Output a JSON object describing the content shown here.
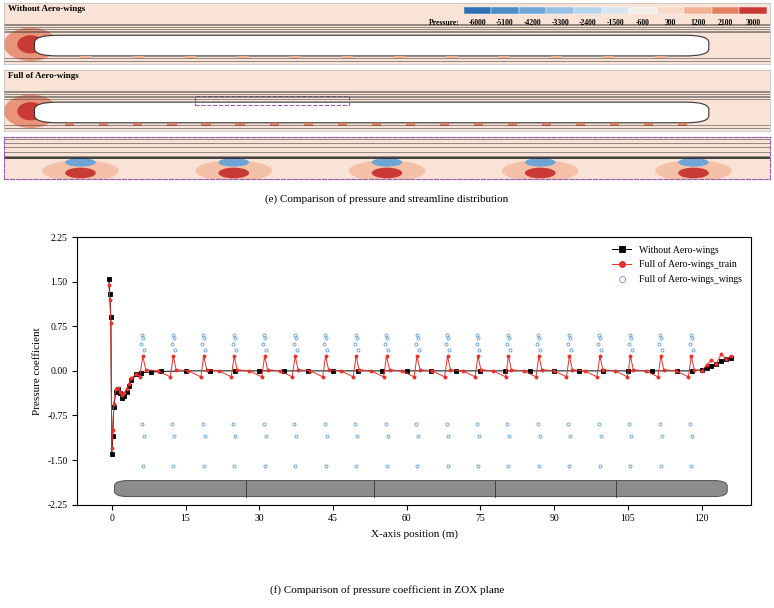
{
  "panel_e": {
    "labels": [
      "Without Aero-wings",
      "Full of Aero-wings"
    ],
    "caption": "(e) Comparison of pressure and streamline distribution",
    "colorbar": {
      "title": "Pressure:",
      "ticks": [
        -6000,
        -5100,
        -4200,
        -3300,
        -2400,
        -1500,
        -600,
        300,
        1200,
        2100,
        3000
      ],
      "colors": [
        "#2e6fb5",
        "#4a8cc8",
        "#6da6d6",
        "#93c0e3",
        "#b6d5ec",
        "#d6e6f1",
        "#f2eeea",
        "#f8d9c7",
        "#f2b293",
        "#e57f62",
        "#c93a35"
      ]
    }
  },
  "chart_data": {
    "type": "scatter",
    "title": "(f) Comparison of pressure coefficient in ZOX plane",
    "x_label": "X-axis position (m)",
    "y_label": "Pressure coefficient",
    "xlim": [
      -7,
      130
    ],
    "ylim": [
      -2.25,
      2.25
    ],
    "xticks": [
      0,
      15,
      30,
      45,
      60,
      75,
      90,
      105,
      120
    ],
    "yticks": [
      -2.25,
      {
        "value": -1.5,
        "label": "-1.50"
      },
      -0.75,
      {
        "value": 0,
        "label": "0.00"
      },
      0.75,
      {
        "value": 1.5,
        "label": "1.50"
      },
      2.25
    ],
    "legend": "upper right",
    "series": [
      {
        "name": "Without Aero-wings",
        "color": "#000000",
        "marker": "square",
        "line_style": "solid",
        "x": [
          -0.6,
          -0.4,
          -0.2,
          0,
          0.2,
          0.4,
          0.8,
          1.2,
          1.6,
          2,
          2.5,
          3,
          3.5,
          4,
          5,
          6,
          8,
          10,
          15,
          20,
          25,
          30,
          35,
          40,
          45,
          50,
          55,
          60,
          65,
          70,
          75,
          80,
          85,
          90,
          95,
          100,
          105,
          110,
          115,
          118,
          120,
          121,
          122,
          123,
          124,
          125,
          126
        ],
        "values": [
          1.55,
          1.3,
          0.9,
          -1.4,
          -1.1,
          -0.6,
          -0.35,
          -0.3,
          -0.38,
          -0.45,
          -0.42,
          -0.35,
          -0.25,
          -0.15,
          -0.06,
          -0.03,
          -0.02,
          -0.01,
          0,
          0,
          0,
          0,
          0,
          0,
          0,
          0,
          0,
          0,
          0,
          0,
          0,
          0,
          0,
          0,
          0,
          0,
          0,
          0,
          0,
          0,
          0.02,
          0.05,
          0.08,
          0.12,
          0.16,
          0.2,
          0.22
        ]
      },
      {
        "name": "Full of Aero-wings_train",
        "color": "#e8302a",
        "marker": "circle",
        "line_style": "solid",
        "x": [
          -0.6,
          -0.4,
          -0.2,
          0,
          0.2,
          0.4,
          0.8,
          1.2,
          1.6,
          2,
          2.5,
          3,
          3.5,
          4,
          5,
          5.7,
          6.3,
          6.9,
          9.4,
          11.9,
          12.5,
          13.1,
          15.6,
          18.1,
          18.7,
          19.3,
          21.8,
          24.3,
          24.9,
          25.5,
          28.0,
          30.5,
          31.1,
          31.7,
          34.2,
          36.7,
          37.3,
          37.9,
          40.4,
          42.9,
          43.5,
          44.1,
          46.6,
          49.1,
          49.7,
          50.3,
          52.8,
          55.3,
          55.9,
          56.5,
          59.0,
          61.5,
          62.1,
          62.7,
          65.2,
          67.7,
          68.3,
          68.9,
          71.4,
          73.9,
          74.5,
          75.1,
          77.6,
          80.1,
          80.7,
          81.3,
          83.8,
          86.3,
          86.9,
          87.5,
          90.0,
          92.5,
          93.1,
          93.7,
          96.2,
          98.7,
          99.3,
          99.9,
          102.4,
          104.9,
          105.5,
          106.1,
          108.6,
          111.1,
          111.7,
          112.3,
          114.8,
          117.3,
          117.9,
          118.5,
          120,
          121,
          122,
          123,
          124,
          125,
          126
        ],
        "values": [
          1.45,
          1.2,
          0.8,
          -1.3,
          -1.0,
          -0.55,
          -0.3,
          -0.28,
          -0.35,
          -0.4,
          -0.38,
          -0.3,
          -0.22,
          -0.12,
          -0.05,
          -0.1,
          0.25,
          0.02,
          0,
          -0.1,
          0.25,
          0.02,
          0,
          -0.1,
          0.25,
          0.02,
          0,
          -0.1,
          0.25,
          0.02,
          0,
          -0.1,
          0.25,
          0.02,
          0,
          -0.1,
          0.25,
          0.02,
          0,
          -0.1,
          0.25,
          0.02,
          0,
          -0.1,
          0.25,
          0.02,
          0,
          -0.1,
          0.25,
          0.02,
          0,
          -0.1,
          0.25,
          0.02,
          0,
          -0.1,
          0.25,
          0.02,
          0,
          -0.1,
          0.25,
          0.02,
          0,
          -0.1,
          0.25,
          0.02,
          0,
          -0.1,
          0.25,
          0.02,
          0,
          -0.1,
          0.25,
          0.02,
          0,
          -0.1,
          0.25,
          0.02,
          0,
          -0.1,
          0.25,
          0.02,
          0,
          -0.1,
          0.25,
          0.02,
          0,
          -0.1,
          0.25,
          0.02,
          0,
          0.1,
          0.18,
          0.12,
          0.28,
          0.2,
          0.25
        ]
      },
      {
        "name": "Full of Aero-wings_wings",
        "color": "#5b9bd5",
        "marker": "circle",
        "line_style": "none",
        "x": [
          6.0,
          6.2,
          6.4,
          6.6,
          6.1,
          6.3,
          6.5,
          12.2,
          12.4,
          12.6,
          12.8,
          12.3,
          12.5,
          12.7,
          18.4,
          18.6,
          18.8,
          19.0,
          18.5,
          18.7,
          18.9,
          24.6,
          24.8,
          25.0,
          25.2,
          24.7,
          24.9,
          25.1,
          30.8,
          31.0,
          31.2,
          31.4,
          30.9,
          31.1,
          31.3,
          37.0,
          37.2,
          37.4,
          37.6,
          37.1,
          37.3,
          37.5,
          43.2,
          43.4,
          43.6,
          43.8,
          43.3,
          43.5,
          43.7,
          49.4,
          49.6,
          49.8,
          50.0,
          49.5,
          49.7,
          49.9,
          55.6,
          55.8,
          56.0,
          56.2,
          55.7,
          55.9,
          56.1,
          61.8,
          62.0,
          62.2,
          62.4,
          61.9,
          62.1,
          62.3,
          68.0,
          68.2,
          68.4,
          68.6,
          68.1,
          68.3,
          68.5,
          74.2,
          74.4,
          74.6,
          74.8,
          74.3,
          74.5,
          74.7,
          80.4,
          80.6,
          80.8,
          81.0,
          80.5,
          80.7,
          80.9,
          86.6,
          86.8,
          87.0,
          87.2,
          86.7,
          86.9,
          87.1,
          92.8,
          93.0,
          93.2,
          93.4,
          92.9,
          93.1,
          93.3,
          99.0,
          99.2,
          99.4,
          99.6,
          99.1,
          99.3,
          99.5,
          105.2,
          105.4,
          105.6,
          105.8,
          105.3,
          105.5,
          105.7,
          111.4,
          111.6,
          111.8,
          112.0,
          111.5,
          111.7,
          111.9,
          117.6,
          117.8,
          118.0,
          118.2,
          117.7,
          117.9,
          118.1
        ],
        "values": [
          0.45,
          0.6,
          0.55,
          0.35,
          -0.9,
          -1.6,
          -1.1,
          0.45,
          0.6,
          0.55,
          0.35,
          -0.9,
          -1.6,
          -1.1,
          0.45,
          0.6,
          0.55,
          0.35,
          -0.9,
          -1.6,
          -1.1,
          0.45,
          0.6,
          0.55,
          0.35,
          -0.9,
          -1.6,
          -1.1,
          0.45,
          0.6,
          0.55,
          0.35,
          -0.9,
          -1.6,
          -1.1,
          0.45,
          0.6,
          0.55,
          0.35,
          -0.9,
          -1.6,
          -1.1,
          0.45,
          0.6,
          0.55,
          0.35,
          -0.9,
          -1.6,
          -1.1,
          0.45,
          0.6,
          0.55,
          0.35,
          -0.9,
          -1.6,
          -1.1,
          0.45,
          0.6,
          0.55,
          0.35,
          -0.9,
          -1.6,
          -1.1,
          0.45,
          0.6,
          0.55,
          0.35,
          -0.9,
          -1.6,
          -1.1,
          0.45,
          0.6,
          0.55,
          0.35,
          -0.9,
          -1.6,
          -1.1,
          0.45,
          0.6,
          0.55,
          0.35,
          -0.9,
          -1.6,
          -1.1,
          0.45,
          0.6,
          0.55,
          0.35,
          -0.9,
          -1.6,
          -1.1,
          0.45,
          0.6,
          0.55,
          0.35,
          -0.9,
          -1.6,
          -1.1,
          0.45,
          0.6,
          0.55,
          0.35,
          -0.9,
          -1.6,
          -1.1,
          0.45,
          0.6,
          0.55,
          0.35,
          -0.9,
          -1.6,
          -1.1,
          0.45,
          0.6,
          0.55,
          0.35,
          -0.9,
          -1.6,
          -1.1,
          0.45,
          0.6,
          0.55,
          0.35,
          -0.9,
          -1.6,
          -1.1,
          0.45,
          0.6,
          0.55,
          0.35,
          -0.9,
          -1.6,
          -1.1
        ]
      }
    ]
  }
}
